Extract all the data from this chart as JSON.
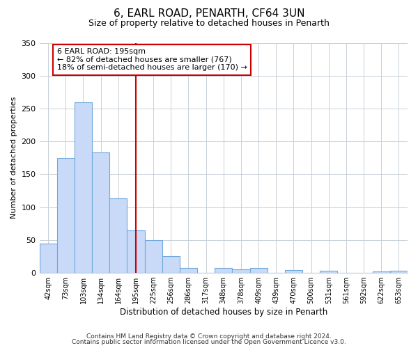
{
  "title": "6, EARL ROAD, PENARTH, CF64 3UN",
  "subtitle": "Size of property relative to detached houses in Penarth",
  "xlabel": "Distribution of detached houses by size in Penarth",
  "ylabel": "Number of detached properties",
  "categories": [
    "42sqm",
    "73sqm",
    "103sqm",
    "134sqm",
    "164sqm",
    "195sqm",
    "225sqm",
    "256sqm",
    "286sqm",
    "317sqm",
    "348sqm",
    "378sqm",
    "409sqm",
    "439sqm",
    "470sqm",
    "500sqm",
    "531sqm",
    "561sqm",
    "592sqm",
    "622sqm",
    "653sqm"
  ],
  "values": [
    45,
    175,
    260,
    183,
    113,
    65,
    50,
    25,
    8,
    0,
    8,
    5,
    7,
    0,
    4,
    0,
    3,
    0,
    0,
    2,
    3
  ],
  "bar_color": "#c9daf8",
  "bar_edge_color": "#6fa8dc",
  "vline_idx": 5,
  "vline_color": "#cc0000",
  "ylim": [
    0,
    350
  ],
  "yticks": [
    0,
    50,
    100,
    150,
    200,
    250,
    300,
    350
  ],
  "annotation_title": "6 EARL ROAD: 195sqm",
  "annotation_line1": "← 82% of detached houses are smaller (767)",
  "annotation_line2": "18% of semi-detached houses are larger (170) →",
  "annotation_box_color": "#ffffff",
  "annotation_box_edge_color": "#cc0000",
  "footer1": "Contains HM Land Registry data © Crown copyright and database right 2024.",
  "footer2": "Contains public sector information licensed under the Open Government Licence v3.0.",
  "background_color": "#ffffff",
  "grid_color": "#c8d0d8"
}
